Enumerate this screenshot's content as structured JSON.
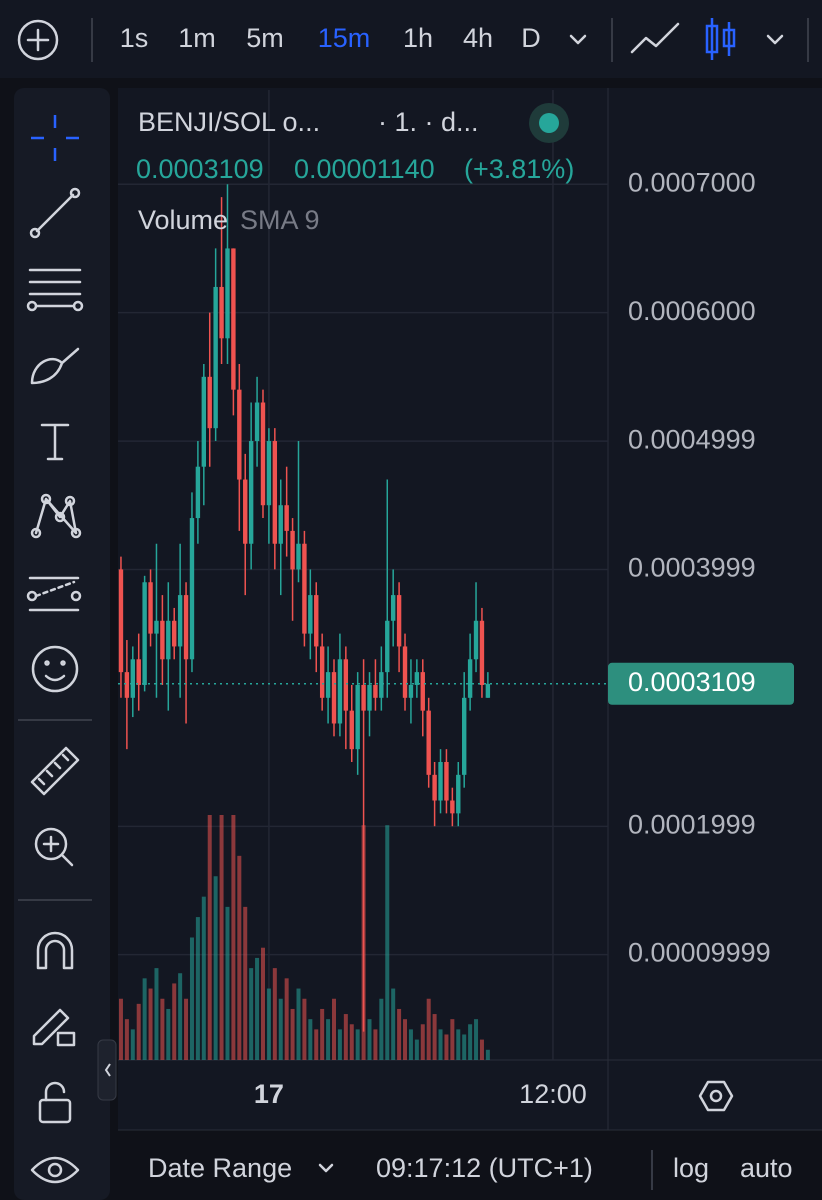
{
  "toolbar": {
    "timeframes": [
      "1s",
      "1m",
      "5m",
      "15m",
      "1h",
      "4h",
      "D"
    ],
    "active_timeframe": "15m"
  },
  "legend": {
    "symbol": "BENJI/SOL o...",
    "interval": "· 1. · d...",
    "price": "0.0003109",
    "change": "0.00001140",
    "change_pct": "(+3.81%)",
    "indicator": "Volume",
    "indicator_params": "SMA 9"
  },
  "bottom_bar": {
    "date_range": "Date Range",
    "clock": "09:17:12 (UTC+1)",
    "log": "log",
    "auto": "auto"
  },
  "chart_data": {
    "type": "candlestick",
    "up_color": "#26a69a",
    "down_color": "#ef5350",
    "open": [
      0.0004,
      0.00032,
      0.0003,
      0.00033,
      0.00031,
      0.00039,
      0.00035,
      0.00036,
      0.00033,
      0.00036,
      0.00034,
      0.00038,
      0.00033,
      0.00044,
      0.00048,
      0.00055,
      0.00051,
      0.00062,
      0.00058,
      0.00065,
      0.00054,
      0.00047,
      0.00042,
      0.0005,
      0.00053,
      0.00045,
      0.0005,
      0.00042,
      0.00045,
      0.00043,
      0.0004,
      0.00042,
      0.00035,
      0.00038,
      0.00034,
      0.0003,
      0.00032,
      0.00028,
      0.00033,
      0.00029,
      0.00026,
      0.00031,
      0.00029,
      0.00031,
      0.0003,
      0.00032,
      0.00036,
      0.00038,
      0.00034,
      0.0003,
      0.00031,
      0.00032,
      0.00029,
      0.00024,
      0.00022,
      0.00025,
      0.00022,
      0.00021,
      0.00024,
      0.0003,
      0.00033,
      0.00036,
      0.0003
    ],
    "high": [
      0.00041,
      0.000345,
      0.00034,
      0.00035,
      0.000395,
      0.0004,
      0.00042,
      0.00038,
      0.00039,
      0.00037,
      0.00042,
      0.00039,
      0.00046,
      0.0005,
      0.00056,
      0.0006,
      0.00065,
      0.00069,
      0.0007,
      0.00065,
      0.00056,
      0.00049,
      0.00053,
      0.00055,
      0.00054,
      0.00051,
      0.00051,
      0.00047,
      0.00048,
      0.00044,
      0.0005,
      0.00043,
      0.0004,
      0.00039,
      0.00035,
      0.00034,
      0.00033,
      0.00035,
      0.00034,
      0.00031,
      0.00032,
      0.00033,
      0.00032,
      0.00033,
      0.00034,
      0.00047,
      0.0004,
      0.00039,
      0.00035,
      0.00033,
      0.00033,
      0.00033,
      0.0003,
      0.00025,
      0.00026,
      0.00026,
      0.00023,
      0.00025,
      0.00032,
      0.00035,
      0.00039,
      0.00037,
      0.00032
    ],
    "low": [
      0.0003,
      0.00026,
      0.000285,
      0.00029,
      0.000305,
      0.00034,
      0.0003,
      0.00031,
      0.00029,
      0.00033,
      0.0003,
      0.00028,
      0.00032,
      0.00042,
      0.00045,
      0.00048,
      0.0005,
      0.00056,
      0.00056,
      0.00052,
      0.00043,
      0.00038,
      0.0004,
      0.00048,
      0.00044,
      0.00042,
      0.0004,
      0.00038,
      0.00041,
      0.00036,
      0.00039,
      0.00034,
      0.00033,
      0.00032,
      0.00029,
      0.00028,
      0.00027,
      0.00027,
      0.00026,
      0.00025,
      0.00024,
      4e-05,
      0.00027,
      0.00029,
      0.00029,
      0.0003,
      0.00034,
      0.00032,
      0.00029,
      0.00028,
      0.0003,
      0.00027,
      0.00023,
      0.0002,
      0.00021,
      0.00021,
      0.0002,
      0.0002,
      0.00023,
      0.00029,
      0.00032,
      0.0003,
      0.0003
    ],
    "close": [
      0.00032,
      0.0003,
      0.00033,
      0.00031,
      0.00039,
      0.00035,
      0.00036,
      0.00033,
      0.00036,
      0.00034,
      0.00038,
      0.00033,
      0.00044,
      0.00048,
      0.00055,
      0.00051,
      0.00062,
      0.00058,
      0.00065,
      0.00054,
      0.00047,
      0.00042,
      0.0005,
      0.00053,
      0.00045,
      0.0005,
      0.00042,
      0.00045,
      0.00043,
      0.0004,
      0.00042,
      0.00035,
      0.00038,
      0.00034,
      0.0003,
      0.00032,
      0.00028,
      0.00033,
      0.00029,
      0.00026,
      0.00031,
      0.00029,
      0.00031,
      0.0003,
      0.00032,
      0.00036,
      0.00038,
      0.00034,
      0.0003,
      0.00031,
      0.00032,
      0.00029,
      0.00024,
      0.00022,
      0.00025,
      0.00022,
      0.00021,
      0.00024,
      0.0003,
      0.00033,
      0.00036,
      0.00031,
      0.0003109
    ],
    "volume": [
      60,
      40,
      30,
      55,
      80,
      70,
      90,
      60,
      50,
      75,
      85,
      60,
      120,
      140,
      160,
      240,
      180,
      240,
      150,
      240,
      200,
      150,
      90,
      100,
      110,
      70,
      90,
      60,
      80,
      50,
      70,
      60,
      40,
      30,
      50,
      40,
      60,
      30,
      45,
      35,
      30,
      230,
      40,
      30,
      60,
      230,
      70,
      50,
      40,
      30,
      20,
      35,
      60,
      45,
      30,
      25,
      40,
      30,
      25,
      35,
      40,
      20,
      10
    ],
    "last_price": 0.0003109,
    "xlim": [
      -0.5,
      82.3
    ],
    "xticks": [
      {
        "value": 25,
        "label": "17"
      },
      {
        "value": 73,
        "label": "12:00"
      }
    ],
    "ylim": [
      1.79e-05,
      0.0007734
    ],
    "yticks": [
      {
        "value": 0.0007,
        "label": "0.0007000"
      },
      {
        "value": 0.0006,
        "label": "0.0006000"
      },
      0.0004999,
      0.0003999,
      0.0001999,
      9.999e-05
    ],
    "grid": true
  }
}
